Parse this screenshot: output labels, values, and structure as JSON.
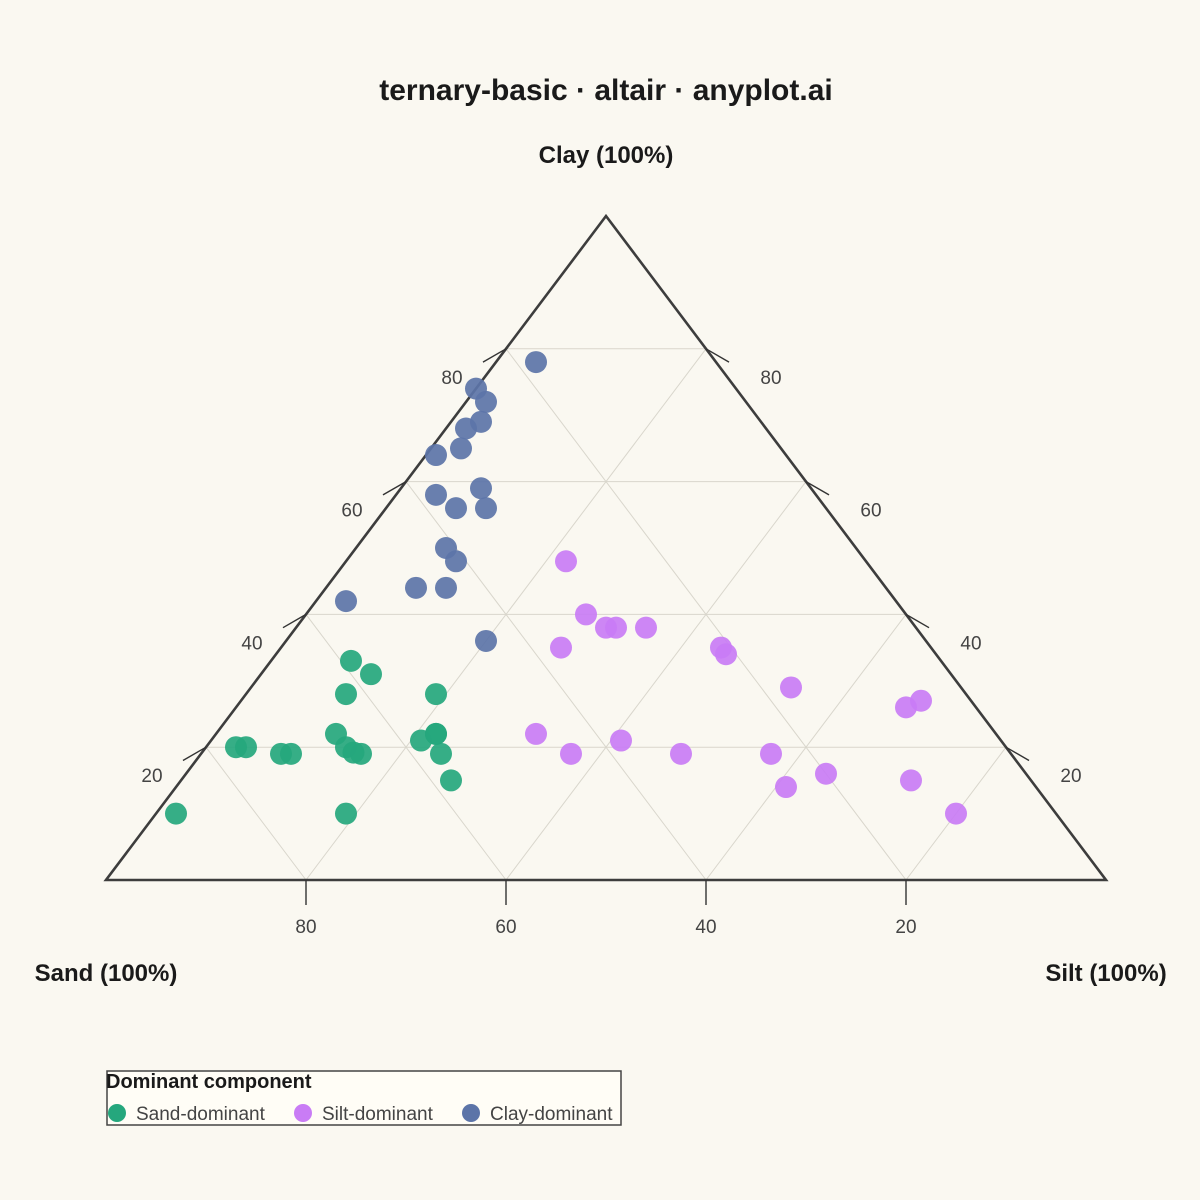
{
  "chart_data": {
    "type": "scatter",
    "subtype": "ternary",
    "title": "ternary-basic · altair · anyplot.ai",
    "axes": {
      "top": "Clay (100%)",
      "left": "Sand (100%)",
      "right": "Silt (100%)"
    },
    "ticks": [
      20,
      40,
      60,
      80
    ],
    "grid": true,
    "legend": {
      "title": "Dominant component",
      "placement": "bottom-left"
    },
    "series": [
      {
        "name": "Sand-dominant",
        "color": "#25A77D",
        "points": [
          {
            "sand": 66,
            "silt": 12,
            "clay": 22
          },
          {
            "sand": 62,
            "silt": 10,
            "clay": 28
          },
          {
            "sand": 59,
            "silt": 8,
            "clay": 33
          },
          {
            "sand": 58,
            "silt": 11,
            "clay": 31
          },
          {
            "sand": 77,
            "silt": 3,
            "clay": 20
          },
          {
            "sand": 76,
            "silt": 4,
            "clay": 20
          },
          {
            "sand": 73,
            "silt": 8,
            "clay": 19
          },
          {
            "sand": 72,
            "silt": 9,
            "clay": 19
          },
          {
            "sand": 88,
            "silt": 2,
            "clay": 10
          },
          {
            "sand": 65,
            "silt": 16,
            "clay": 19
          },
          {
            "sand": 58,
            "silt": 21,
            "clay": 21
          },
          {
            "sand": 66,
            "silt": 14,
            "clay": 20
          },
          {
            "sand": 65,
            "silt": 15,
            "clay": 19
          },
          {
            "sand": 56,
            "silt": 22,
            "clay": 22
          },
          {
            "sand": 53,
            "silt": 19,
            "clay": 28
          },
          {
            "sand": 58,
            "silt": 27,
            "clay": 15
          },
          {
            "sand": 71,
            "silt": 19,
            "clay": 10
          },
          {
            "sand": 57,
            "silt": 24,
            "clay": 19
          },
          {
            "sand": 56,
            "silt": 22,
            "clay": 22
          }
        ]
      },
      {
        "name": "Silt-dominant",
        "color": "#C97CF5",
        "points": [
          {
            "sand": 30,
            "silt": 22,
            "clay": 48
          },
          {
            "sand": 30,
            "silt": 32,
            "clay": 38
          },
          {
            "sand": 32,
            "silt": 28,
            "clay": 40
          },
          {
            "sand": 37,
            "silt": 28,
            "clay": 35
          },
          {
            "sand": 31,
            "silt": 31,
            "clay": 38
          },
          {
            "sand": 27,
            "silt": 35,
            "clay": 38
          },
          {
            "sand": 21,
            "silt": 44,
            "clay": 35
          },
          {
            "sand": 21,
            "silt": 45,
            "clay": 34
          },
          {
            "sand": 17,
            "silt": 54,
            "clay": 29
          },
          {
            "sand": 5,
            "silt": 68,
            "clay": 27
          },
          {
            "sand": 7,
            "silt": 67,
            "clay": 26
          },
          {
            "sand": 46,
            "silt": 32,
            "clay": 22
          },
          {
            "sand": 44,
            "silt": 37,
            "clay": 19
          },
          {
            "sand": 38,
            "silt": 41,
            "clay": 21
          },
          {
            "sand": 33,
            "silt": 48,
            "clay": 19
          },
          {
            "sand": 24,
            "silt": 57,
            "clay": 19
          },
          {
            "sand": 20,
            "silt": 64,
            "clay": 16
          },
          {
            "sand": 10,
            "silt": 80,
            "clay": 10
          },
          {
            "sand": 25,
            "silt": 61,
            "clay": 14
          },
          {
            "sand": 12,
            "silt": 73,
            "clay": 15
          }
        ]
      },
      {
        "name": "Clay-dominant",
        "color": "#5C74A8",
        "points": [
          {
            "sand": 18,
            "silt": 4,
            "clay": 78
          },
          {
            "sand": 26,
            "silt": 0,
            "clay": 74
          },
          {
            "sand": 26,
            "silt": 2,
            "clay": 72
          },
          {
            "sand": 28,
            "silt": 3,
            "clay": 69
          },
          {
            "sand": 30,
            "silt": 2,
            "clay": 68
          },
          {
            "sand": 32,
            "silt": 3,
            "clay": 65
          },
          {
            "sand": 35,
            "silt": 1,
            "clay": 64
          },
          {
            "sand": 33,
            "silt": 8,
            "clay": 59
          },
          {
            "sand": 38,
            "silt": 4,
            "clay": 58
          },
          {
            "sand": 37,
            "silt": 7,
            "clay": 56
          },
          {
            "sand": 41,
            "silt": 9,
            "clay": 50
          },
          {
            "sand": 34,
            "silt": 10,
            "clay": 56
          },
          {
            "sand": 44,
            "silt": 12,
            "clay": 44
          },
          {
            "sand": 47,
            "silt": 9,
            "clay": 44
          },
          {
            "sand": 55,
            "silt": 3,
            "clay": 42
          },
          {
            "sand": 41,
            "silt": 11,
            "clay": 48
          },
          {
            "sand": 44,
            "silt": 20,
            "clay": 36
          }
        ]
      }
    ]
  }
}
